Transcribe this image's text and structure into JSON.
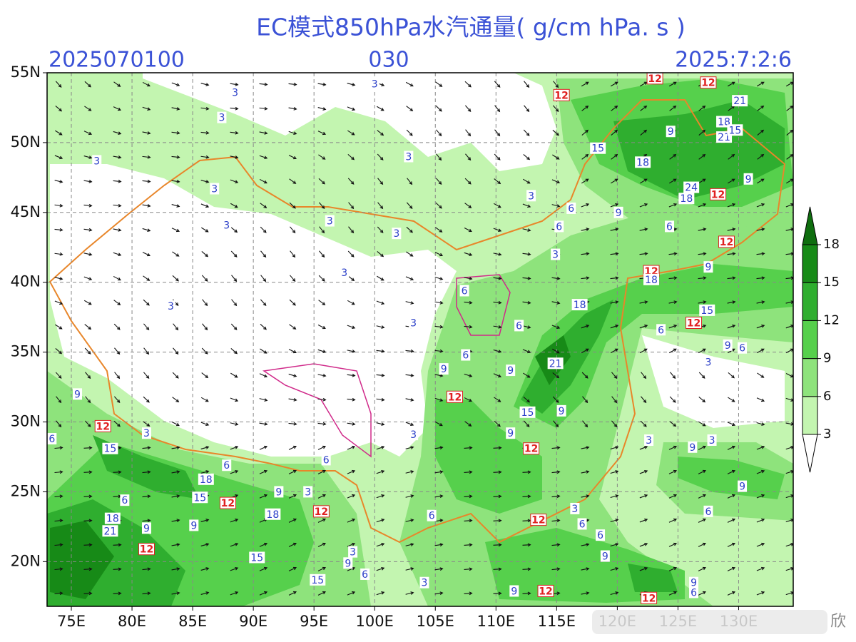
{
  "header": {
    "title": "EC模式850hPa水汽通量( g/cm hPa. s )",
    "init_time": "2025070100",
    "forecast_hour": "030",
    "valid_time": "2025:7:2:6"
  },
  "map": {
    "lon_range": [
      73,
      134.5
    ],
    "lat_range": [
      16.8,
      55
    ],
    "lon_ticks": [
      {
        "value": 75,
        "label": "75E"
      },
      {
        "value": 80,
        "label": "80E"
      },
      {
        "value": 85,
        "label": "85E"
      },
      {
        "value": 90,
        "label": "90E"
      },
      {
        "value": 95,
        "label": "95E"
      },
      {
        "value": 100,
        "label": "100E"
      },
      {
        "value": 105,
        "label": "105E"
      },
      {
        "value": 110,
        "label": "110E"
      },
      {
        "value": 115,
        "label": "115E"
      },
      {
        "value": 120,
        "label": "120E"
      },
      {
        "value": 125,
        "label": "125E"
      },
      {
        "value": 130,
        "label": "130E"
      }
    ],
    "lat_ticks": [
      {
        "value": 20,
        "label": "20N"
      },
      {
        "value": 25,
        "label": "25N"
      },
      {
        "value": 30,
        "label": "30N"
      },
      {
        "value": 35,
        "label": "35N"
      },
      {
        "value": 40,
        "label": "40N"
      },
      {
        "value": 45,
        "label": "45N"
      },
      {
        "value": 50,
        "label": "50N"
      },
      {
        "value": 55,
        "label": "55N"
      }
    ],
    "grid": true
  },
  "colorbar": {
    "levels": [
      3,
      6,
      9,
      12,
      15,
      18
    ],
    "colors": [
      "#ffffff",
      "#c3f5b0",
      "#8ee37c",
      "#56d04c",
      "#2fae2f",
      "#178a17",
      "#0f6e0f"
    ]
  },
  "contour_labels": [
    {
      "text": "3",
      "lon": 88.5,
      "lat": 53.6,
      "style": "blue"
    },
    {
      "text": "3",
      "lon": 87.4,
      "lat": 51.8,
      "style": "blue"
    },
    {
      "text": "3",
      "lon": 77.1,
      "lat": 48.7,
      "style": "blue"
    },
    {
      "text": "3",
      "lon": 86.8,
      "lat": 46.7,
      "style": "blue"
    },
    {
      "text": "3",
      "lon": 87.8,
      "lat": 44.1,
      "style": "blue"
    },
    {
      "text": "3",
      "lon": 96.3,
      "lat": 44.4,
      "style": "blue"
    },
    {
      "text": "3",
      "lon": 101.8,
      "lat": 43.5,
      "style": "blue"
    },
    {
      "text": "3",
      "lon": 97.5,
      "lat": 40.7,
      "style": "blue"
    },
    {
      "text": "3",
      "lon": 83.2,
      "lat": 38.3,
      "style": "blue"
    },
    {
      "text": "3",
      "lon": 102.8,
      "lat": 49.0,
      "style": "blue"
    },
    {
      "text": "3",
      "lon": 112.9,
      "lat": 46.2,
      "style": "blue"
    },
    {
      "text": "3",
      "lon": 100.0,
      "lat": 54.2,
      "style": "blue"
    },
    {
      "text": "12",
      "lon": 115.4,
      "lat": 53.4,
      "style": "red"
    },
    {
      "text": "12",
      "lon": 123.1,
      "lat": 54.6,
      "style": "red"
    },
    {
      "text": "12",
      "lon": 127.5,
      "lat": 54.3,
      "style": "red"
    },
    {
      "text": "21",
      "lon": 130.1,
      "lat": 53.0,
      "style": "blue"
    },
    {
      "text": "18",
      "lon": 128.8,
      "lat": 51.5,
      "style": "blue"
    },
    {
      "text": "21",
      "lon": 128.8,
      "lat": 50.4,
      "style": "blue"
    },
    {
      "text": "15",
      "lon": 129.7,
      "lat": 50.9,
      "style": "blue"
    },
    {
      "text": "9",
      "lon": 124.4,
      "lat": 50.8,
      "style": "blue"
    },
    {
      "text": "15",
      "lon": 118.4,
      "lat": 49.6,
      "style": "blue"
    },
    {
      "text": "18",
      "lon": 122.1,
      "lat": 48.6,
      "style": "blue"
    },
    {
      "text": "24",
      "lon": 126.1,
      "lat": 46.8,
      "style": "blue"
    },
    {
      "text": "18",
      "lon": 125.7,
      "lat": 46.0,
      "style": "blue"
    },
    {
      "text": "12",
      "lon": 128.3,
      "lat": 46.3,
      "style": "red"
    },
    {
      "text": "9",
      "lon": 130.8,
      "lat": 47.4,
      "style": "blue"
    },
    {
      "text": "9",
      "lon": 120.1,
      "lat": 45.0,
      "style": "blue"
    },
    {
      "text": "6",
      "lon": 116.2,
      "lat": 45.3,
      "style": "blue"
    },
    {
      "text": "6",
      "lon": 115.2,
      "lat": 44.0,
      "style": "blue"
    },
    {
      "text": "6",
      "lon": 124.3,
      "lat": 44.0,
      "style": "blue"
    },
    {
      "text": "12",
      "lon": 129.0,
      "lat": 42.9,
      "style": "red"
    },
    {
      "text": "3",
      "lon": 114.9,
      "lat": 42.0,
      "style": "blue"
    },
    {
      "text": "9",
      "lon": 127.5,
      "lat": 41.1,
      "style": "blue"
    },
    {
      "text": "12",
      "lon": 122.8,
      "lat": 40.8,
      "style": "red"
    },
    {
      "text": "18",
      "lon": 122.8,
      "lat": 40.2,
      "style": "blue"
    },
    {
      "text": "18",
      "lon": 116.9,
      "lat": 38.4,
      "style": "blue"
    },
    {
      "text": "15",
      "lon": 127.4,
      "lat": 38.0,
      "style": "blue"
    },
    {
      "text": "12",
      "lon": 126.3,
      "lat": 37.1,
      "style": "red"
    },
    {
      "text": "6",
      "lon": 123.6,
      "lat": 36.6,
      "style": "blue"
    },
    {
      "text": "6",
      "lon": 111.9,
      "lat": 36.9,
      "style": "blue"
    },
    {
      "text": "6",
      "lon": 107.4,
      "lat": 39.4,
      "style": "blue"
    },
    {
      "text": "6",
      "lon": 107.5,
      "lat": 34.8,
      "style": "blue"
    },
    {
      "text": "3",
      "lon": 103.2,
      "lat": 37.1,
      "style": "blue"
    },
    {
      "text": "9",
      "lon": 129.1,
      "lat": 35.5,
      "style": "blue"
    },
    {
      "text": "6",
      "lon": 130.3,
      "lat": 35.3,
      "style": "blue"
    },
    {
      "text": "3",
      "lon": 127.5,
      "lat": 34.3,
      "style": "blue"
    },
    {
      "text": "21",
      "lon": 114.9,
      "lat": 34.2,
      "style": "blue"
    },
    {
      "text": "9",
      "lon": 111.2,
      "lat": 33.7,
      "style": "blue"
    },
    {
      "text": "9",
      "lon": 105.7,
      "lat": 33.8,
      "style": "blue"
    },
    {
      "text": "12",
      "lon": 106.6,
      "lat": 31.8,
      "style": "red"
    },
    {
      "text": "15",
      "lon": 112.6,
      "lat": 30.7,
      "style": "blue"
    },
    {
      "text": "9",
      "lon": 115.4,
      "lat": 30.8,
      "style": "blue"
    },
    {
      "text": "9",
      "lon": 111.2,
      "lat": 29.2,
      "style": "blue"
    },
    {
      "text": "12",
      "lon": 112.9,
      "lat": 28.1,
      "style": "red"
    },
    {
      "text": "3",
      "lon": 103.2,
      "lat": 29.1,
      "style": "blue"
    },
    {
      "text": "3",
      "lon": 122.6,
      "lat": 28.7,
      "style": "blue"
    },
    {
      "text": "9",
      "lon": 126.2,
      "lat": 28.2,
      "style": "blue"
    },
    {
      "text": "3",
      "lon": 127.8,
      "lat": 28.7,
      "style": "blue"
    },
    {
      "text": "9",
      "lon": 130.3,
      "lat": 25.4,
      "style": "blue"
    },
    {
      "text": "6",
      "lon": 127.5,
      "lat": 23.6,
      "style": "blue"
    },
    {
      "text": "9",
      "lon": 75.5,
      "lat": 32.0,
      "style": "blue"
    },
    {
      "text": "12",
      "lon": 77.6,
      "lat": 29.7,
      "style": "red"
    },
    {
      "text": "6",
      "lon": 73.4,
      "lat": 28.8,
      "style": "blue"
    },
    {
      "text": "3",
      "lon": 81.2,
      "lat": 29.2,
      "style": "blue"
    },
    {
      "text": "15",
      "lon": 78.2,
      "lat": 28.1,
      "style": "blue"
    },
    {
      "text": "6",
      "lon": 87.8,
      "lat": 26.9,
      "style": "blue"
    },
    {
      "text": "18",
      "lon": 86.1,
      "lat": 25.9,
      "style": "blue"
    },
    {
      "text": "6",
      "lon": 96.0,
      "lat": 27.3,
      "style": "blue"
    },
    {
      "text": "15",
      "lon": 85.6,
      "lat": 24.6,
      "style": "blue"
    },
    {
      "text": "6",
      "lon": 79.4,
      "lat": 24.4,
      "style": "blue"
    },
    {
      "text": "12",
      "lon": 87.9,
      "lat": 24.2,
      "style": "red"
    },
    {
      "text": "9",
      "lon": 92.1,
      "lat": 25.0,
      "style": "blue"
    },
    {
      "text": "3",
      "lon": 94.5,
      "lat": 25.0,
      "style": "blue"
    },
    {
      "text": "12",
      "lon": 95.6,
      "lat": 23.6,
      "style": "red"
    },
    {
      "text": "18",
      "lon": 91.6,
      "lat": 23.4,
      "style": "blue"
    },
    {
      "text": "18",
      "lon": 78.4,
      "lat": 23.1,
      "style": "blue"
    },
    {
      "text": "9",
      "lon": 81.2,
      "lat": 22.4,
      "style": "blue"
    },
    {
      "text": "21",
      "lon": 78.2,
      "lat": 22.2,
      "style": "blue"
    },
    {
      "text": "9",
      "lon": 85.1,
      "lat": 22.6,
      "style": "blue"
    },
    {
      "text": "12",
      "lon": 81.2,
      "lat": 20.9,
      "style": "red"
    },
    {
      "text": "15",
      "lon": 90.3,
      "lat": 20.3,
      "style": "blue"
    },
    {
      "text": "3",
      "lon": 98.2,
      "lat": 20.7,
      "style": "blue"
    },
    {
      "text": "9",
      "lon": 97.8,
      "lat": 19.9,
      "style": "blue"
    },
    {
      "text": "6",
      "lon": 99.2,
      "lat": 19.1,
      "style": "blue"
    },
    {
      "text": "15",
      "lon": 95.3,
      "lat": 18.7,
      "style": "blue"
    },
    {
      "text": "3",
      "lon": 104.1,
      "lat": 18.5,
      "style": "blue"
    },
    {
      "text": "6",
      "lon": 104.7,
      "lat": 23.3,
      "style": "blue"
    },
    {
      "text": "12",
      "lon": 113.5,
      "lat": 23.0,
      "style": "red"
    },
    {
      "text": "3",
      "lon": 116.5,
      "lat": 23.8,
      "style": "blue"
    },
    {
      "text": "6",
      "lon": 117.1,
      "lat": 22.7,
      "style": "blue"
    },
    {
      "text": "6",
      "lon": 118.6,
      "lat": 21.9,
      "style": "blue"
    },
    {
      "text": "9",
      "lon": 119.0,
      "lat": 20.4,
      "style": "blue"
    },
    {
      "text": "9",
      "lon": 111.5,
      "lat": 17.9,
      "style": "blue"
    },
    {
      "text": "12",
      "lon": 114.1,
      "lat": 17.9,
      "style": "red"
    },
    {
      "text": "12",
      "lon": 122.6,
      "lat": 17.4,
      "style": "red"
    },
    {
      "text": "9",
      "lon": 126.3,
      "lat": 18.5,
      "style": "blue"
    },
    {
      "text": "6",
      "lon": 126.3,
      "lat": 17.8,
      "style": "blue"
    }
  ],
  "watermark": "欣"
}
